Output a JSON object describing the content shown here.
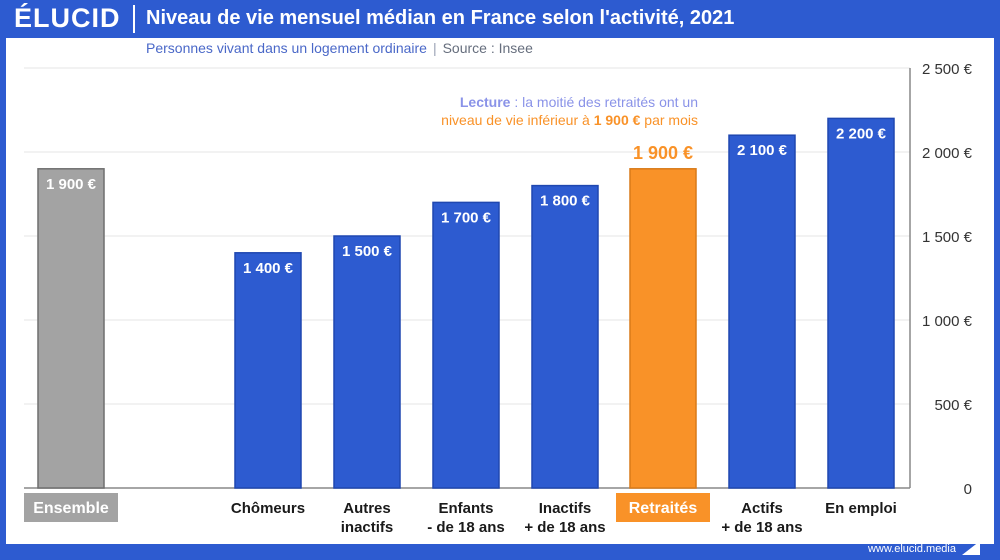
{
  "header": {
    "logo": "ÉLUCID",
    "title": "Niveau de vie mensuel médian en France selon l'activité, 2021"
  },
  "subtitle": {
    "population": "Personnes vivant dans un logement ordinaire",
    "source": "Source : Insee"
  },
  "annotation": {
    "lead": "Lecture",
    "line1_rest": " : la moitié des retraités ont un",
    "line2_pre": "niveau de vie inférieur à ",
    "line2_value": "1 900 €",
    "line2_post": " par mois"
  },
  "footer": {
    "url": "www.elucid.media"
  },
  "colors": {
    "blue": "#2d5bd0",
    "gray": "#a3a3a3",
    "orange": "#f99228",
    "highlight_text": "#f99228",
    "lead_text": "#8a93e8"
  },
  "chart_data": {
    "type": "bar",
    "title": "Niveau de vie mensuel médian en France selon l'activité, 2021",
    "ylim": [
      0,
      2500
    ],
    "yticks": [
      0,
      500,
      1000,
      1500,
      2000,
      2500
    ],
    "ytick_labels": [
      "0",
      "500 €",
      "1 000 €",
      "1 500 €",
      "2 000 €",
      "2 500 €"
    ],
    "categories": [
      {
        "lines": [
          "Ensemble"
        ],
        "value": 1900,
        "value_label": "1 900 €",
        "style": "gray"
      },
      {
        "lines": [
          "Chômeurs"
        ],
        "value": 1400,
        "value_label": "1 400 €",
        "style": "blue"
      },
      {
        "lines": [
          "Autres",
          "inactifs"
        ],
        "value": 1500,
        "value_label": "1 500 €",
        "style": "blue"
      },
      {
        "lines": [
          "Enfants",
          "- de 18 ans"
        ],
        "value": 1700,
        "value_label": "1 700 €",
        "style": "blue"
      },
      {
        "lines": [
          "Inactifs",
          "+ de 18 ans"
        ],
        "value": 1800,
        "value_label": "1 800 €",
        "style": "blue"
      },
      {
        "lines": [
          "Retraités"
        ],
        "value": 1900,
        "value_label": "1 900 €",
        "style": "orange"
      },
      {
        "lines": [
          "Actifs",
          "+ de 18 ans"
        ],
        "value": 2100,
        "value_label": "2 100 €",
        "style": "blue"
      },
      {
        "lines": [
          "En emploi"
        ],
        "value": 2200,
        "value_label": "2 200 €",
        "style": "blue"
      }
    ]
  }
}
